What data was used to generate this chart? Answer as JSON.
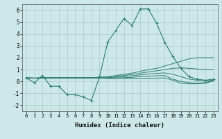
{
  "xlabel": "Humidex (Indice chaleur)",
  "background_color": "#cde8e8",
  "line_color": "#2e7d6e",
  "grid_color": "#aacaca",
  "x_data": [
    0,
    1,
    2,
    3,
    4,
    5,
    6,
    7,
    8,
    9,
    10,
    11,
    12,
    13,
    14,
    15,
    16,
    17,
    18,
    19,
    20,
    21,
    22,
    23
  ],
  "main_series": [
    0.3,
    -0.1,
    0.5,
    -0.4,
    -0.4,
    -1.1,
    -1.1,
    -1.3,
    -1.6,
    0.4,
    3.3,
    4.3,
    5.3,
    4.7,
    6.1,
    6.1,
    4.9,
    3.3,
    2.1,
    1.1,
    0.4,
    0.2,
    0.1,
    0.2
  ],
  "fan_lines": [
    [
      0.3,
      0.28,
      0.3,
      0.3,
      0.3,
      0.3,
      0.3,
      0.3,
      0.3,
      0.35,
      0.4,
      0.5,
      0.6,
      0.7,
      0.85,
      1.0,
      1.1,
      1.3,
      1.5,
      1.7,
      1.9,
      2.0,
      2.0,
      2.0
    ],
    [
      0.3,
      0.28,
      0.3,
      0.3,
      0.3,
      0.3,
      0.3,
      0.3,
      0.3,
      0.35,
      0.38,
      0.45,
      0.5,
      0.6,
      0.7,
      0.8,
      0.9,
      1.0,
      1.1,
      1.15,
      1.1,
      1.05,
      1.0,
      1.0
    ],
    [
      0.3,
      0.28,
      0.3,
      0.3,
      0.3,
      0.3,
      0.3,
      0.3,
      0.3,
      0.3,
      0.32,
      0.36,
      0.42,
      0.48,
      0.55,
      0.62,
      0.68,
      0.72,
      0.6,
      0.4,
      0.2,
      0.1,
      0.05,
      0.1
    ],
    [
      0.3,
      0.28,
      0.3,
      0.3,
      0.3,
      0.3,
      0.3,
      0.3,
      0.3,
      0.3,
      0.28,
      0.3,
      0.32,
      0.35,
      0.4,
      0.44,
      0.48,
      0.5,
      0.2,
      0.0,
      -0.1,
      -0.15,
      -0.1,
      0.1
    ],
    [
      0.3,
      0.28,
      0.3,
      0.3,
      0.3,
      0.3,
      0.3,
      0.3,
      0.3,
      0.3,
      0.25,
      0.25,
      0.25,
      0.25,
      0.27,
      0.28,
      0.28,
      0.3,
      0.1,
      -0.15,
      -0.2,
      -0.2,
      -0.15,
      0.05
    ]
  ],
  "xlim": [
    -0.5,
    23.5
  ],
  "ylim": [
    -2.5,
    6.5
  ],
  "yticks": [
    -2,
    -1,
    0,
    1,
    2,
    3,
    4,
    5,
    6
  ],
  "xticks": [
    0,
    1,
    2,
    3,
    4,
    5,
    6,
    7,
    8,
    9,
    10,
    11,
    12,
    13,
    14,
    15,
    16,
    17,
    18,
    19,
    20,
    21,
    22,
    23
  ]
}
